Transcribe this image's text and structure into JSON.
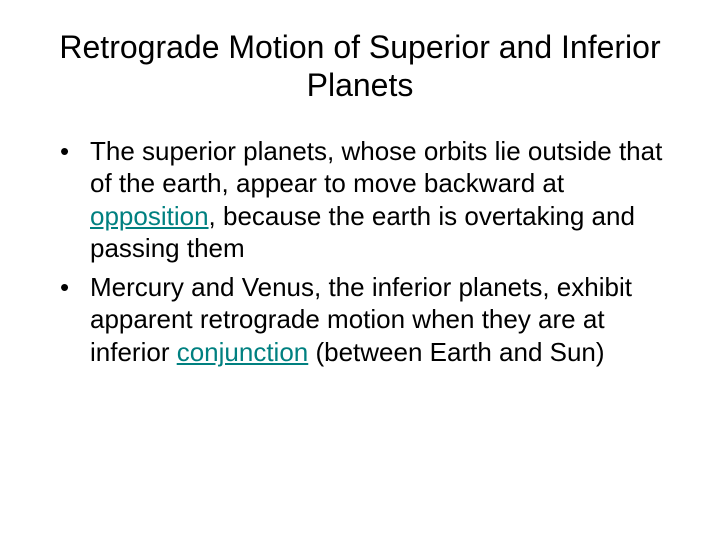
{
  "title": "Retrograde Motion of Superior and Inferior Planets",
  "bullets": [
    {
      "pre": "The superior planets, whose orbits lie outside that of the earth, appear to move backward at ",
      "link": "opposition",
      "post": ", because the earth is overtaking and passing them"
    },
    {
      "pre": "Mercury and Venus, the inferior planets, exhibit apparent retrograde motion when they are at inferior ",
      "link": "conjunction",
      "post": " (between Earth and Sun)"
    }
  ],
  "colors": {
    "background": "#ffffff",
    "text": "#000000",
    "link": "#008080"
  },
  "typography": {
    "title_fontsize": 32,
    "body_fontsize": 26,
    "font_family": "Arial"
  }
}
